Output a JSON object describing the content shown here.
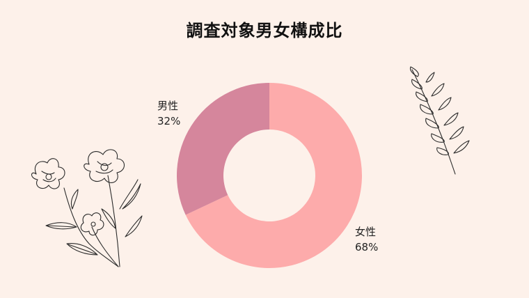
{
  "title": "調査対象男女構成比",
  "colors": {
    "background": "#fdf1ea",
    "female": "#fdabab",
    "male": "#d5869c"
  },
  "chart_data": {
    "type": "pie",
    "variant": "donut",
    "title": "調査対象男女構成比",
    "slices": [
      {
        "label": "女性",
        "value": 68,
        "value_label": "68%",
        "color": "#fdabab"
      },
      {
        "label": "男性",
        "value": 32,
        "value_label": "32%",
        "color": "#d5869c"
      }
    ],
    "legend": "none"
  },
  "decorations": [
    {
      "icon": "flower-line-art"
    },
    {
      "icon": "leaf-sprig-line-art"
    }
  ]
}
